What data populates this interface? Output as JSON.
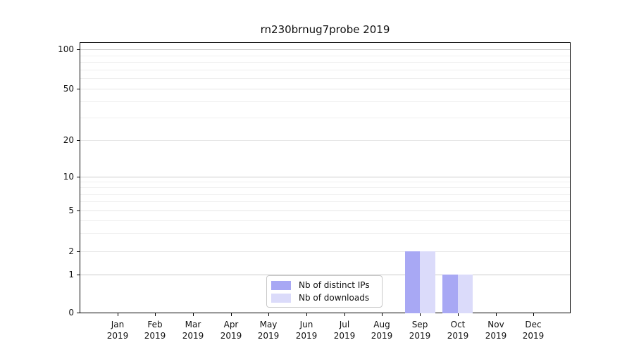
{
  "chart_data": {
    "type": "bar",
    "title": "rn230brnug7probe 2019",
    "x_axis": {
      "categories": [
        "Jan",
        "Feb",
        "Mar",
        "Apr",
        "May",
        "Jun",
        "Jul",
        "Aug",
        "Sep",
        "Oct",
        "Nov",
        "Dec"
      ],
      "year_label": "2019"
    },
    "y_axis": {
      "scale": "symlog",
      "tick_labels": [
        0,
        1,
        2,
        5,
        10,
        20,
        50,
        100
      ],
      "minor_ticks": [
        3,
        4,
        6,
        7,
        8,
        9,
        30,
        40,
        60,
        70,
        80,
        90
      ],
      "range": [
        0,
        120
      ],
      "grid": "horizontal"
    },
    "series": [
      {
        "name": "Nb of distinct IPs",
        "color": "#a8a8f4",
        "values": [
          0,
          0,
          0,
          0,
          0,
          0,
          0,
          0,
          2,
          1,
          0,
          0
        ]
      },
      {
        "name": "Nb of downloads",
        "color": "#dbdbfa",
        "values": [
          0,
          0,
          0,
          0,
          0,
          0,
          0,
          0,
          2,
          1,
          0,
          0
        ]
      }
    ],
    "legend": {
      "position": "lower center",
      "entries": [
        "Nb of distinct IPs",
        "Nb of downloads"
      ]
    }
  }
}
